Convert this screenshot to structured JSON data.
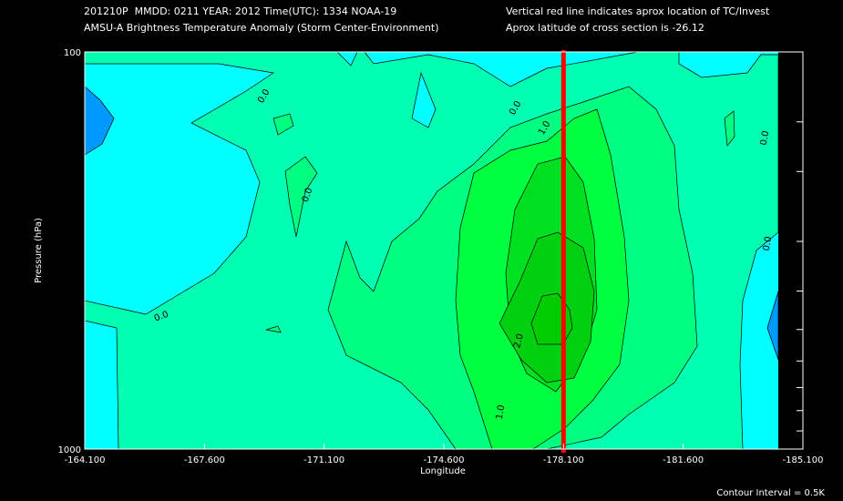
{
  "header": {
    "line1": "201210P  MMDD: 0211 YEAR: 2012 Time(UTC): 1334 NOAA-19",
    "line2": "AMSU-A Brightness Temperature Anomaly (Storm Center-Environment)",
    "right1": "Vertical red line indicates aprox location of TC/Invest",
    "right2": "Aprox latitude of cross section is -26.12"
  },
  "footer": {
    "contour_interval": "Contour Interval = 0.5K"
  },
  "chart_data": {
    "type": "contour",
    "xlabel": "Longitude",
    "ylabel": "Pressure (hPa)",
    "x_ticks": [
      "-164.100",
      "-167.600",
      "-171.100",
      "-174.600",
      "-178.100",
      "-181.600",
      "-185.100"
    ],
    "x_range": [
      -164.1,
      -185.1
    ],
    "y_ticks": [
      "100",
      "1000"
    ],
    "y_range": [
      100,
      1000
    ],
    "y_scale": "log",
    "storm_longitude": -178.1,
    "contour_labels": [
      "0.0",
      "0.0",
      "0.0",
      "0.0",
      "0.0",
      "0.0",
      "1.0",
      "1.0",
      "2.0"
    ],
    "colors": {
      "level_neg": "#00ffff",
      "level_neg_deep": "#0099ff",
      "level_0": "#00ffb0",
      "level_05": "#00ff80",
      "level_1": "#00ff40",
      "level_15": "#00e020",
      "level_2": "#00d010",
      "storm_line": "#ff0000"
    }
  }
}
